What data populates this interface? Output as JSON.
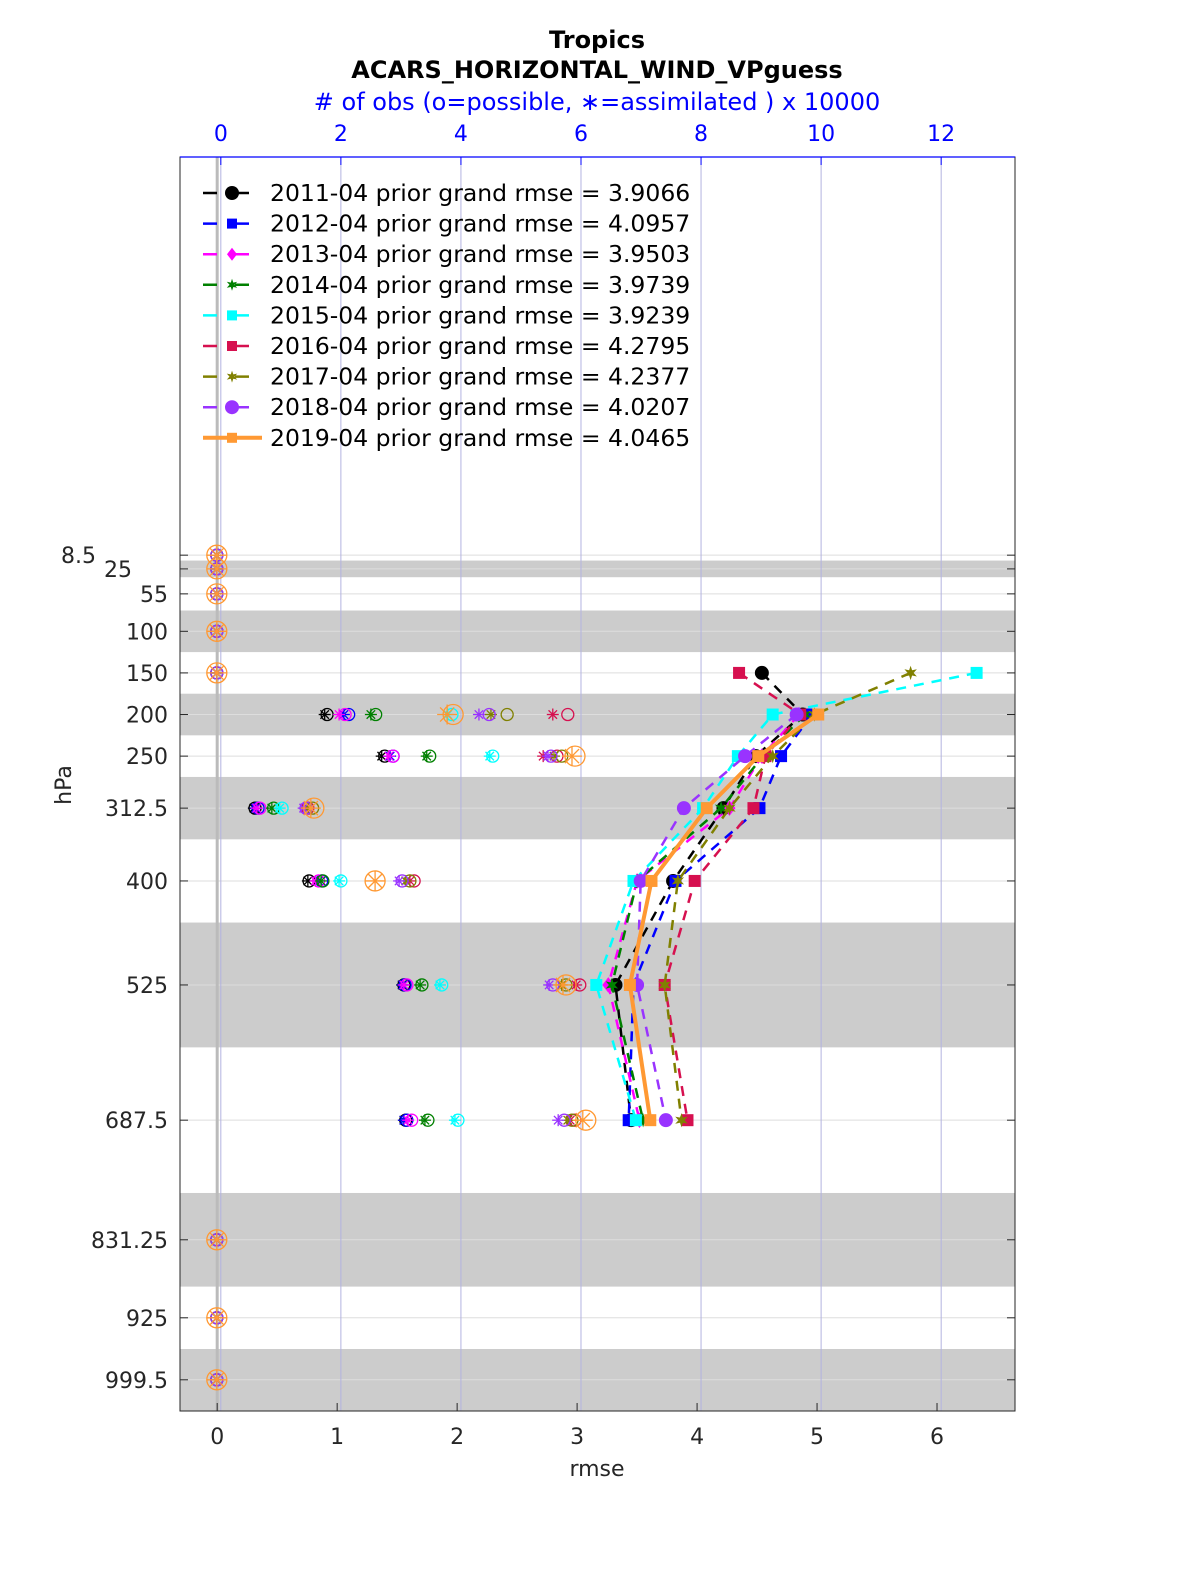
{
  "chart_data": {
    "type": "line",
    "title": "Tropics",
    "subtitle": "ACARS_HORIZONTAL_WIND_VPguess",
    "top_axis_label": "# of obs (o=possible, ∗=assimilated ) x 10000",
    "xlabel": "rmse",
    "ylabel": "hPa",
    "xlim": [
      -0.31,
      6.65
    ],
    "xticks": [
      0,
      1,
      2,
      3,
      4,
      5,
      6
    ],
    "top_xlim": [
      -0.68,
      13.23
    ],
    "top_xticks": [
      0,
      2,
      4,
      6,
      8,
      10,
      12
    ],
    "ylim": [
      -470,
      1037
    ],
    "y_reversed": true,
    "levels": [
      8.5,
      25,
      55,
      100,
      150,
      200,
      250,
      312.5,
      400,
      525,
      687.5,
      831.25,
      925,
      999.5
    ],
    "level_labels": [
      "8.5",
      "25",
      "55",
      "100",
      "150",
      "200",
      "250",
      "312.5",
      "400",
      "525",
      "687.5",
      "831.25",
      "925",
      "999.5"
    ],
    "layer_bands": [
      [
        15,
        35
      ],
      [
        75,
        125
      ],
      [
        175,
        225
      ],
      [
        275,
        350
      ],
      [
        450,
        600
      ],
      [
        775,
        887.5
      ],
      [
        962.5,
        1037
      ]
    ],
    "grid": true,
    "legend_placement": "top-left",
    "colors": {
      "title": "#000000",
      "top_axis": "#0000ff",
      "band": "#cccccc",
      "vgrid": "#b3b3e0",
      "hgrid": "#dddddd"
    },
    "series": [
      {
        "name": "2011-04 prior grand rmse = 3.9066",
        "color": "#000000",
        "marker": "circle",
        "line": "dashed",
        "rmse": [
          null,
          null,
          null,
          null,
          4.54,
          4.88,
          4.49,
          4.22,
          3.8,
          3.32,
          3.45,
          null,
          null,
          null
        ],
        "obs_possible": [
          0,
          0,
          0,
          0,
          0,
          1.77,
          2.73,
          0.57,
          1.47,
          3.05,
          3.08,
          0,
          0,
          0
        ],
        "obs_assimilated": [
          0,
          0,
          0,
          0,
          0,
          1.73,
          2.68,
          0.55,
          1.45,
          3.02,
          3.05,
          0,
          0,
          0
        ]
      },
      {
        "name": "2012-04 prior grand rmse = 4.0957",
        "color": "#0000ff",
        "marker": "square",
        "line": "dashed",
        "rmse": [
          null,
          null,
          null,
          null,
          null,
          4.96,
          4.7,
          4.52,
          3.82,
          3.47,
          3.43,
          null,
          null,
          null
        ],
        "obs_possible": [
          0,
          0,
          0,
          0,
          0,
          2.13,
          2.87,
          0.62,
          1.68,
          3.07,
          3.1,
          0,
          0,
          0
        ],
        "obs_assimilated": [
          0,
          0,
          0,
          0,
          0,
          2.05,
          2.82,
          0.58,
          1.63,
          3.03,
          3.05,
          0,
          0,
          0
        ]
      },
      {
        "name": "2013-04 prior grand rmse = 3.9503",
        "color": "#ff00ff",
        "marker": "diamond",
        "line": "dashed",
        "rmse": [
          null,
          null,
          null,
          null,
          null,
          4.85,
          4.54,
          4.27,
          3.5,
          3.26,
          3.52,
          null,
          null,
          null
        ],
        "obs_possible": [
          0,
          0,
          0,
          0,
          0,
          2.07,
          2.87,
          0.65,
          1.63,
          3.1,
          3.18,
          0,
          0,
          0
        ],
        "obs_assimilated": [
          0,
          0,
          0,
          0,
          0,
          1.97,
          2.8,
          0.6,
          1.58,
          3.05,
          3.12,
          0,
          0,
          0
        ]
      },
      {
        "name": "2014-04 prior grand rmse = 3.9739",
        "color": "#008000",
        "marker": "hexagram",
        "line": "dashed",
        "rmse": [
          null,
          null,
          null,
          null,
          null,
          4.9,
          4.55,
          4.2,
          3.5,
          3.29,
          3.55,
          null,
          null,
          null
        ],
        "obs_possible": [
          0,
          0,
          0,
          0,
          0,
          2.58,
          3.48,
          0.88,
          1.7,
          3.35,
          3.45,
          0,
          0,
          0
        ],
        "obs_assimilated": [
          0,
          0,
          0,
          0,
          0,
          2.5,
          3.43,
          0.85,
          1.67,
          3.32,
          3.4,
          0,
          0,
          0
        ]
      },
      {
        "name": "2015-04 prior grand rmse = 3.9239",
        "color": "#00ffff",
        "marker": "square",
        "line": "dashed",
        "rmse": [
          null,
          null,
          null,
          null,
          6.33,
          4.63,
          4.34,
          4.05,
          3.47,
          3.16,
          3.49,
          null,
          null,
          null
        ],
        "obs_possible": [
          0,
          0,
          0,
          0,
          0,
          3.85,
          4.53,
          1.02,
          2.0,
          3.68,
          3.95,
          0,
          0,
          0
        ],
        "obs_assimilated": [
          0,
          0,
          0,
          0,
          0,
          3.78,
          4.48,
          0.98,
          1.97,
          3.65,
          3.9,
          0,
          0,
          0
        ]
      },
      {
        "name": "2016-04 prior grand rmse = 4.2795",
        "color": "#d6104f",
        "marker": "square",
        "line": "dashed",
        "rmse": [
          null,
          null,
          null,
          null,
          4.35,
          4.86,
          4.57,
          4.47,
          3.98,
          3.73,
          3.92,
          null,
          null,
          null
        ],
        "obs_possible": [
          0,
          0,
          0,
          0,
          0,
          5.78,
          5.6,
          1.45,
          3.22,
          5.98,
          5.9,
          0,
          0,
          0
        ],
        "obs_assimilated": [
          0,
          0,
          0,
          0,
          0,
          5.53,
          5.37,
          1.4,
          3.15,
          5.92,
          5.82,
          0,
          0,
          0
        ]
      },
      {
        "name": "2017-04 prior grand rmse = 4.2377",
        "color": "#808000",
        "marker": "hexagram",
        "line": "dashed",
        "rmse": [
          null,
          null,
          null,
          null,
          5.78,
          4.98,
          4.63,
          4.27,
          3.84,
          3.73,
          3.87,
          null,
          null,
          null
        ],
        "obs_possible": [
          0,
          0,
          0,
          0,
          0,
          4.77,
          5.68,
          1.53,
          3.15,
          5.75,
          5.85,
          0,
          0,
          0
        ],
        "obs_assimilated": [
          0,
          0,
          0,
          0,
          0,
          4.5,
          5.55,
          1.45,
          3.08,
          5.68,
          5.78,
          0,
          0,
          0
        ]
      },
      {
        "name": "2018-04 prior grand rmse = 4.0207",
        "color": "#9933ff",
        "marker": "circle",
        "line": "dashed",
        "rmse": [
          null,
          null,
          null,
          null,
          null,
          4.83,
          4.4,
          3.89,
          3.53,
          3.5,
          3.74,
          null,
          null,
          null
        ],
        "obs_possible": [
          0,
          0,
          0,
          0,
          0,
          4.47,
          5.5,
          1.42,
          3.02,
          5.53,
          5.72,
          0,
          0,
          0
        ],
        "obs_assimilated": [
          0,
          0,
          0,
          0,
          0,
          4.3,
          5.45,
          1.38,
          2.97,
          5.47,
          5.62,
          0,
          0,
          0
        ]
      },
      {
        "name": "2019-04 prior grand rmse = 4.0465",
        "color": "#ff9933",
        "marker": "square",
        "line": "solid",
        "rmse": [
          null,
          null,
          null,
          null,
          null,
          5.01,
          4.51,
          4.08,
          3.62,
          3.44,
          3.61,
          null,
          null,
          null
        ],
        "obs_possible": [
          0,
          0,
          0,
          0,
          0,
          3.87,
          5.9,
          1.55,
          2.57,
          5.75,
          6.08,
          0,
          0,
          0
        ],
        "obs_assimilated": [
          0,
          0,
          0,
          0,
          0,
          3.77,
          5.85,
          1.5,
          2.57,
          5.7,
          6.03,
          0,
          0,
          0
        ]
      }
    ]
  }
}
